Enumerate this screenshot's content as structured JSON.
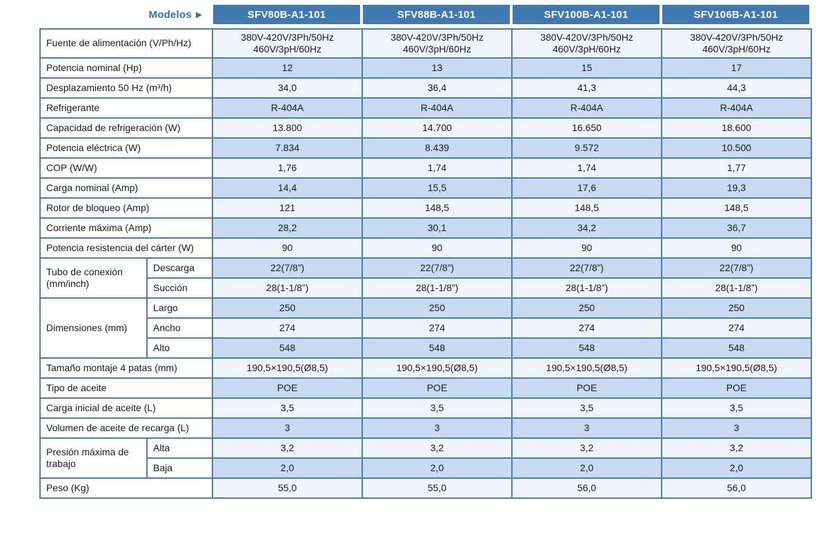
{
  "header": {
    "models_label": "Modelos",
    "arrow": "▶",
    "models": [
      "SFV80B-A1-101",
      "SFV88B-A1-101",
      "SFV100B-A1-101",
      "SFV106B-A1-101"
    ]
  },
  "colors": {
    "header_bg": "#4079b2",
    "header_text": "#ffffff",
    "models_label_text": "#2a76ba",
    "border": "#4a7ebb",
    "row_light": "#f0f5fb",
    "row_dark": "#c8dbf2",
    "label_bg": "#ffffff"
  },
  "table": {
    "rows": [
      {
        "label": "Fuente de alimentación (V/Ph/Hz)",
        "values": [
          "380V-420V/3Ph/50Hz\n460V/3pH/60Hz",
          "380V-420V/3Ph/50Hz\n460V/3pH/60Hz",
          "380V-420V/3Ph/50Hz\n460V/3pH/60Hz",
          "380V-420V/3Ph/50Hz\n460V/3pH/60Hz"
        ]
      },
      {
        "label": "Potencia nominal (Hp)",
        "values": [
          "12",
          "13",
          "15",
          "17"
        ]
      },
      {
        "label": "Desplazamiento 50 Hz (m³/h)",
        "values": [
          "34,0",
          "36,4",
          "41,3",
          "44,3"
        ]
      },
      {
        "label": "Refrigerante",
        "values": [
          "R-404A",
          "R-404A",
          "R-404A",
          "R-404A"
        ]
      },
      {
        "label": "Capacidad de refrigeración (W)",
        "values": [
          "13.800",
          "14.700",
          "16.650",
          "18.600"
        ]
      },
      {
        "label": "Potencia eléctrica (W)",
        "values": [
          "7.834",
          "8.439",
          "9.572",
          "10.500"
        ]
      },
      {
        "label": "COP (W/W)",
        "values": [
          "1,76",
          "1,74",
          "1,74",
          "1,77"
        ]
      },
      {
        "label": "Carga nominal (Amp)",
        "values": [
          "14,4",
          "15,5",
          "17,6",
          "19,3"
        ]
      },
      {
        "label": "Rotor de bloqueo (Amp)",
        "values": [
          "121",
          "148,5",
          "148,5",
          "148,5"
        ]
      },
      {
        "label": "Corriente máxima (Amp)",
        "values": [
          "28,2",
          "30,1",
          "34,2",
          "36,7"
        ]
      },
      {
        "label": "Potencia resistencia del cárter (W)",
        "values": [
          "90",
          "90",
          "90",
          "90"
        ]
      },
      {
        "group": "Tubo de conexión (mm/inch)",
        "group_span": 2,
        "sub": "Descarga",
        "values": [
          "22(7/8”)",
          "22(7/8”)",
          "22(7/8”)",
          "22(7/8”)"
        ]
      },
      {
        "sub": "Succión",
        "values": [
          "28(1-1/8”)",
          "28(1-1/8”)",
          "28(1-1/8”)",
          "28(1-1/8”)"
        ]
      },
      {
        "group": "Dimensiones (mm)",
        "group_span": 3,
        "sub": "Largo",
        "values": [
          "250",
          "250",
          "250",
          "250"
        ]
      },
      {
        "sub": "Ancho",
        "values": [
          "274",
          "274",
          "274",
          "274"
        ]
      },
      {
        "sub": "Alto",
        "values": [
          "548",
          "548",
          "548",
          "548"
        ]
      },
      {
        "label": "Tamaño montaje 4 patas (mm)",
        "values": [
          "190,5×190,5(Ø8,5)",
          "190,5×190,5(Ø8,5)",
          "190,5×190,5(Ø8,5)",
          "190,5×190,5(Ø8,5)"
        ]
      },
      {
        "label": "Tipo de aceite",
        "values": [
          "POE",
          "POE",
          "POE",
          "POE"
        ]
      },
      {
        "label": "Carga inicial de aceite (L)",
        "values": [
          "3,5",
          "3,5",
          "3,5",
          "3,5"
        ]
      },
      {
        "label": "Volumen de aceite de recarga (L)",
        "values": [
          "3",
          "3",
          "3",
          "3"
        ]
      },
      {
        "group": "Presión máxima de trabajo",
        "group_span": 2,
        "sub": "Alta",
        "values": [
          "3,2",
          "3,2",
          "3,2",
          "3,2"
        ]
      },
      {
        "sub": "Baja",
        "values": [
          "2,0",
          "2,0",
          "2,0",
          "2,0"
        ]
      },
      {
        "label": "Peso (Kg)",
        "values": [
          "55,0",
          "55,0",
          "56,0",
          "56,0"
        ]
      }
    ]
  }
}
